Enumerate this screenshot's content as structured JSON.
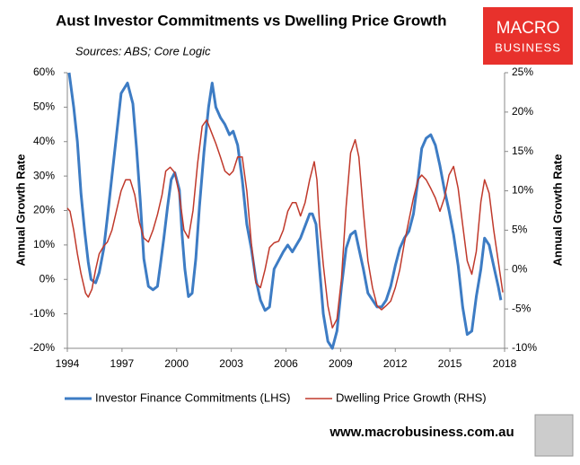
{
  "chart_data": {
    "type": "line",
    "title": "Aust Investor Commitments vs Dwelling Price Growth",
    "subtitle": "Sources: ABS; Core Logic",
    "brand": [
      "MACRO",
      "BUSINESS"
    ],
    "website": "www.macrobusiness.com.au",
    "ylabel": "Annual Growth Rate",
    "y2label": "Annual Growth Rate",
    "xlim": [
      1994,
      2018
    ],
    "xticks": [
      1994,
      1997,
      2000,
      2003,
      2006,
      2009,
      2012,
      2015,
      2018
    ],
    "ylim": [
      -20,
      60
    ],
    "yticks": [
      {
        "value": -20,
        "label": "-20%"
      },
      {
        "value": -10,
        "label": "-10%"
      },
      {
        "value": 0,
        "label": "0%"
      },
      {
        "value": 10,
        "label": "10%"
      },
      {
        "value": 20,
        "label": "20%"
      },
      {
        "value": 30,
        "label": "30%"
      },
      {
        "value": 40,
        "label": "40%"
      },
      {
        "value": 50,
        "label": "50%"
      },
      {
        "value": 60,
        "label": "60%"
      }
    ],
    "y2lim": [
      -10,
      25
    ],
    "y2ticks": [
      {
        "value": -10,
        "label": "-10%"
      },
      {
        "value": -5,
        "label": "-5%"
      },
      {
        "value": 0,
        "label": "0%"
      },
      {
        "value": 5,
        "label": "5%"
      },
      {
        "value": 10,
        "label": "10%"
      },
      {
        "value": 15,
        "label": "15%"
      },
      {
        "value": 20,
        "label": "20%"
      },
      {
        "value": 25,
        "label": "25%"
      }
    ],
    "legend": "bottom",
    "series": [
      {
        "name": "Investor Finance Commitments (LHS)",
        "color": "#3d7cc4",
        "width": 3,
        "x": [
          1994.1,
          1994.35,
          1994.55,
          1994.75,
          1994.95,
          1995.15,
          1995.3,
          1995.55,
          1995.75,
          1996.0,
          1996.2,
          1996.45,
          1996.7,
          1996.95,
          1997.3,
          1997.6,
          1997.8,
          1998.0,
          1998.2,
          1998.45,
          1998.7,
          1998.95,
          1999.1,
          1999.3,
          1999.5,
          1999.7,
          1999.9,
          2000.15,
          2000.3,
          2000.45,
          2000.65,
          2000.85,
          2001.05,
          2001.25,
          2001.5,
          2001.75,
          2001.95,
          2002.15,
          2002.4,
          2002.65,
          2002.9,
          2003.1,
          2003.35,
          2003.6,
          2003.85,
          2004.1,
          2004.35,
          2004.6,
          2004.85,
          2005.1,
          2005.35,
          2005.85,
          2006.1,
          2006.35,
          2006.8,
          2007.3,
          2007.45,
          2007.65,
          2007.85,
          2008.05,
          2008.3,
          2008.55,
          2008.8,
          2009.05,
          2009.3,
          2009.55,
          2009.8,
          2010.0,
          2010.25,
          2010.5,
          2011.0,
          2011.25,
          2011.5,
          2011.75,
          2012.0,
          2012.25,
          2012.5,
          2012.75,
          2013.0,
          2013.25,
          2013.45,
          2013.7,
          2013.95,
          2014.2,
          2014.45,
          2014.7,
          2014.95,
          2015.2,
          2015.45,
          2015.7,
          2015.95,
          2016.2,
          2016.45,
          2016.7,
          2016.9,
          2017.15,
          2017.4,
          2017.65,
          2017.8
        ],
        "values": [
          60,
          50,
          40,
          25,
          14,
          5,
          0,
          -1,
          2,
          9,
          18,
          30,
          42,
          54,
          57,
          51,
          38,
          23,
          6,
          -2,
          -3,
          -2,
          4,
          12,
          21,
          29,
          31,
          26,
          13,
          3,
          -5,
          -4,
          6,
          21,
          37,
          50,
          57,
          50,
          47,
          45,
          42,
          43,
          39,
          29,
          16,
          9,
          0,
          -6,
          -9,
          -8,
          3,
          8,
          10,
          8,
          12,
          19,
          19,
          16,
          3,
          -10,
          -18,
          -20,
          -15,
          -2,
          9,
          13,
          14,
          9,
          3,
          -4,
          -8,
          -8,
          -6,
          -2,
          4,
          9,
          12,
          14,
          19,
          29,
          38,
          41,
          42,
          39,
          33,
          26,
          20,
          13,
          4,
          -8,
          -16,
          -15,
          -5,
          3,
          12,
          10,
          4,
          -2,
          -6
        ]
      },
      {
        "name": "Dwelling Price Growth (RHS)",
        "color": "#c0392b",
        "width": 1.5,
        "axis": "y2",
        "x": [
          1994.0,
          1994.15,
          1994.35,
          1994.55,
          1994.75,
          1995.0,
          1995.15,
          1995.35,
          1995.55,
          1995.75,
          1996.0,
          1996.2,
          1996.45,
          1996.7,
          1996.95,
          1997.2,
          1997.45,
          1997.7,
          1997.95,
          1998.2,
          1998.45,
          1998.7,
          1998.95,
          1999.2,
          1999.4,
          1999.65,
          1999.9,
          2000.15,
          2000.4,
          2000.65,
          2000.9,
          2001.15,
          2001.4,
          2001.65,
          2001.9,
          2002.15,
          2002.4,
          2002.65,
          2002.9,
          2003.1,
          2003.35,
          2003.6,
          2003.85,
          2004.1,
          2004.35,
          2004.6,
          2004.85,
          2005.1,
          2005.35,
          2005.6,
          2005.85,
          2006.1,
          2006.35,
          2006.55,
          2006.8,
          2007.05,
          2007.3,
          2007.55,
          2007.7,
          2007.85,
          2008.05,
          2008.3,
          2008.55,
          2008.8,
          2009.05,
          2009.3,
          2009.55,
          2009.8,
          2010.0,
          2010.25,
          2010.5,
          2010.75,
          2011.0,
          2011.25,
          2011.5,
          2011.75,
          2012.0,
          2012.25,
          2012.5,
          2012.75,
          2013.0,
          2013.25,
          2013.45,
          2013.7,
          2013.95,
          2014.2,
          2014.45,
          2014.7,
          2014.95,
          2015.2,
          2015.45,
          2015.7,
          2015.95,
          2016.2,
          2016.45,
          2016.7,
          2016.9,
          2017.15,
          2017.4,
          2017.65,
          2017.9
        ],
        "values": [
          7.8,
          7.4,
          5,
          2,
          -0.5,
          -3,
          -3.5,
          -2.5,
          0,
          2,
          3,
          3.5,
          5,
          7.5,
          10,
          11.4,
          11.4,
          9.5,
          6,
          4,
          3.5,
          5,
          7,
          9.5,
          12.5,
          13,
          12.3,
          9.5,
          5,
          4,
          7.5,
          13.5,
          18.2,
          19,
          17.5,
          16,
          14.3,
          12.5,
          12,
          12.5,
          14.3,
          14.3,
          10,
          3.4,
          -1.7,
          -2.3,
          0,
          2.8,
          3.4,
          3.6,
          5,
          7.4,
          8.5,
          8.5,
          6.8,
          8.5,
          11.4,
          13.7,
          11.4,
          5.7,
          0.6,
          -4.6,
          -7.4,
          -6.3,
          -1.1,
          8,
          14.8,
          16.5,
          14.3,
          7.4,
          1.1,
          -2.3,
          -4.6,
          -5.1,
          -4.6,
          -4,
          -2.3,
          0,
          3.4,
          6.3,
          9.1,
          11.4,
          12,
          11.4,
          10.3,
          9.1,
          7.4,
          9.1,
          12,
          13.1,
          10.3,
          5.7,
          1.1,
          -0.6,
          2.3,
          8.6,
          11.4,
          9.7,
          5.1,
          1.1,
          -2.9
        ]
      }
    ]
  }
}
